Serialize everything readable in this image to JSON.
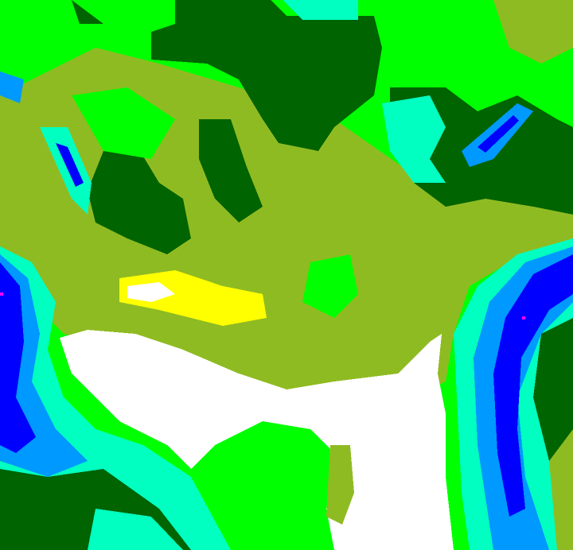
{
  "map": {
    "kind": "false-color classified raster",
    "colors": {
      "bright_green": "#00ff00",
      "dark_green": "#006400",
      "olive": "#8fbb22",
      "white": "#ffffff",
      "yellow": "#ffff00",
      "aqua": "#00ffc0",
      "light_blue": "#0099ff",
      "blue": "#0000ff",
      "magenta": "#ff00ff"
    }
  }
}
